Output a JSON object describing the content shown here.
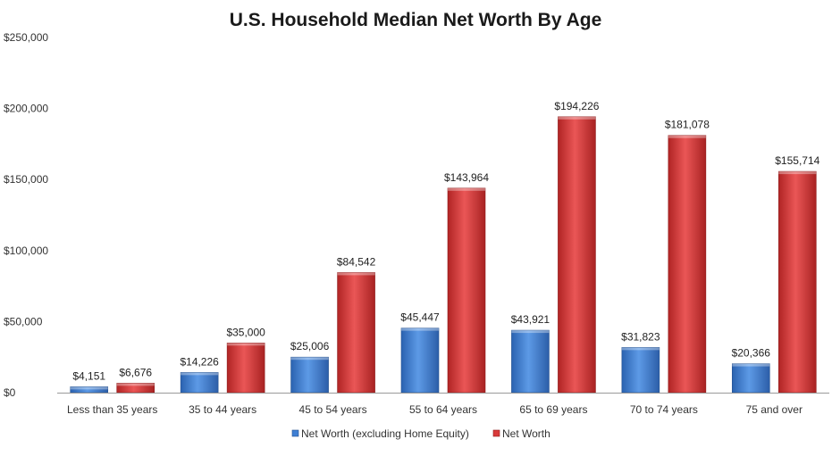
{
  "chart_data": {
    "type": "bar",
    "title": "U.S. Household Median Net Worth By Age",
    "xlabel": "",
    "ylabel": "",
    "categories": [
      "Less than 35 years",
      "35 to 44 years",
      "45 to 54 years",
      "55 to 64 years",
      "65 to 69 years",
      "70 to 74 years",
      "75 and over"
    ],
    "series": [
      {
        "name": "Net Worth (excluding Home Equity)",
        "color": "#3f7fd4",
        "values": [
          4151,
          14226,
          25006,
          45447,
          43921,
          31823,
          20366
        ],
        "labels": [
          "$4,151",
          "$14,226",
          "$25,006",
          "$45,447",
          "$43,921",
          "$31,823",
          "$20,366"
        ]
      },
      {
        "name": "Net Worth",
        "color": "#d93a3a",
        "values": [
          6676,
          35000,
          84542,
          143964,
          194226,
          181078,
          155714
        ],
        "labels": [
          "$6,676",
          "$35,000",
          "$84,542",
          "$143,964",
          "$194,226",
          "$181,078",
          "$155,714"
        ]
      }
    ],
    "ylim": [
      0,
      250000
    ],
    "yticks": [
      0,
      50000,
      100000,
      150000,
      200000,
      250000
    ],
    "ytick_labels": [
      "$0",
      "$50,000",
      "$100,000",
      "$150,000",
      "$200,000",
      "$250,000"
    ],
    "grid": false,
    "legend_position": "bottom"
  }
}
